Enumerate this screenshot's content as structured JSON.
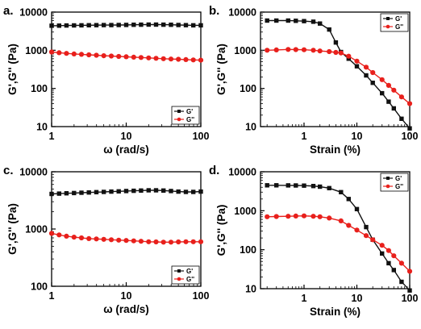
{
  "figure": {
    "colors": {
      "gprime": "#111111",
      "gdouble": "#e8201c",
      "axis": "#000000"
    }
  },
  "chart_data": [
    {
      "panel_label": "a.",
      "type": "line",
      "xscale": "log",
      "yscale": "log",
      "xlim": [
        1,
        100
      ],
      "ylim": [
        10,
        10000
      ],
      "xticks": [
        "1",
        "10",
        "100"
      ],
      "yticks": [
        "10",
        "100",
        "1000",
        "10000"
      ],
      "xlabel": "ω (rad/s)",
      "ylabel": "G',G'' (Pa)",
      "legend": "bottom-right",
      "x": [
        1,
        1.26,
        1.58,
        2,
        2.51,
        3.16,
        3.98,
        5.01,
        6.31,
        7.94,
        10,
        12.6,
        15.8,
        20,
        25.1,
        31.6,
        39.8,
        50.1,
        63.1,
        79.4,
        100
      ],
      "series": [
        {
          "name": "G'",
          "values": [
            4400,
            4420,
            4450,
            4480,
            4500,
            4520,
            4550,
            4560,
            4580,
            4600,
            4620,
            4650,
            4680,
            4700,
            4700,
            4680,
            4650,
            4600,
            4550,
            4500,
            4500
          ]
        },
        {
          "name": "G''",
          "values": [
            900,
            860,
            830,
            800,
            780,
            760,
            740,
            720,
            705,
            690,
            675,
            660,
            645,
            630,
            615,
            600,
            590,
            580,
            570,
            560,
            550
          ]
        }
      ]
    },
    {
      "panel_label": "b.",
      "type": "line",
      "xscale": "log",
      "yscale": "log",
      "xlim": [
        0.15,
        100
      ],
      "ylim": [
        10,
        10000
      ],
      "xticks": [
        "1",
        "10",
        "100"
      ],
      "yticks": [
        "10",
        "100",
        "1000",
        "10000"
      ],
      "xlabel": "Strain (%)",
      "ylabel": "G',G'' (Pa)",
      "legend": "top-right",
      "x": [
        0.2,
        0.3,
        0.5,
        0.7,
        1,
        1.5,
        2,
        3,
        4,
        5,
        7,
        10,
        15,
        20,
        30,
        40,
        50,
        70,
        100
      ],
      "series": [
        {
          "name": "G'",
          "values": [
            6000,
            6000,
            6000,
            5900,
            5800,
            5600,
            5000,
            3500,
            1600,
            900,
            600,
            380,
            220,
            140,
            75,
            45,
            30,
            16,
            9
          ]
        },
        {
          "name": "G''",
          "values": [
            1000,
            1020,
            1050,
            1040,
            1030,
            1000,
            960,
            920,
            880,
            850,
            700,
            520,
            360,
            260,
            170,
            120,
            90,
            60,
            40
          ]
        }
      ]
    },
    {
      "panel_label": "c.",
      "type": "line",
      "xscale": "log",
      "yscale": "log",
      "xlim": [
        1,
        100
      ],
      "ylim": [
        100,
        10000
      ],
      "xticks": [
        "1",
        "10",
        "100"
      ],
      "yticks": [
        "100",
        "1000",
        "10000"
      ],
      "xlabel": "ω (rad/s)",
      "ylabel": "G',G'' (Pa)",
      "legend": "bottom-right",
      "x": [
        1,
        1.26,
        1.58,
        2,
        2.51,
        3.16,
        3.98,
        5.01,
        6.31,
        7.94,
        10,
        12.6,
        15.8,
        20,
        25.1,
        31.6,
        39.8,
        50.1,
        63.1,
        79.4,
        100
      ],
      "series": [
        {
          "name": "G'",
          "values": [
            4100,
            4150,
            4200,
            4250,
            4300,
            4350,
            4400,
            4450,
            4500,
            4550,
            4600,
            4650,
            4700,
            4750,
            4750,
            4700,
            4600,
            4500,
            4450,
            4450,
            4500
          ]
        },
        {
          "name": "G''",
          "values": [
            840,
            790,
            750,
            720,
            700,
            680,
            670,
            660,
            650,
            640,
            630,
            620,
            610,
            600,
            595,
            590,
            590,
            595,
            600,
            600,
            600
          ]
        }
      ]
    },
    {
      "panel_label": "d.",
      "type": "line",
      "xscale": "log",
      "yscale": "log",
      "xlim": [
        0.15,
        100
      ],
      "ylim": [
        10,
        10000
      ],
      "xticks": [
        "1",
        "10",
        "100"
      ],
      "yticks": [
        "10",
        "100",
        "1000",
        "10000"
      ],
      "xlabel": "Strain (%)",
      "ylabel": "G',G'' (Pa)",
      "legend": "top-right",
      "x": [
        0.2,
        0.3,
        0.5,
        0.7,
        1,
        1.5,
        2,
        3,
        5,
        7,
        10,
        15,
        20,
        30,
        40,
        50,
        70,
        100
      ],
      "series": [
        {
          "name": "G'",
          "values": [
            4500,
            4500,
            4480,
            4450,
            4400,
            4300,
            4150,
            3800,
            3000,
            2000,
            1100,
            380,
            180,
            80,
            45,
            30,
            15,
            9
          ]
        },
        {
          "name": "G''",
          "values": [
            700,
            710,
            720,
            730,
            740,
            720,
            700,
            650,
            550,
            420,
            320,
            230,
            180,
            130,
            95,
            70,
            45,
            28
          ]
        }
      ]
    }
  ]
}
